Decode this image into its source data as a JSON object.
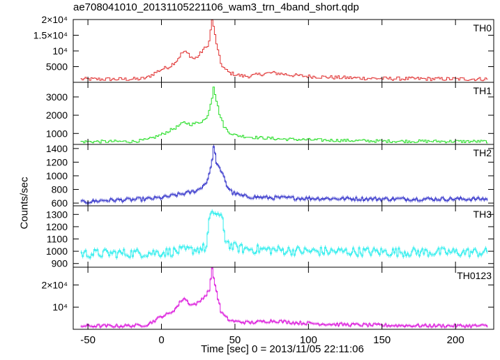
{
  "chart_data": {
    "type": "line",
    "title": "ae708041010_20131105221106_wam3_trn_4band_short.qdp",
    "xlabel": "Time [sec] 0 = 2013/11/05 22:11:06",
    "ylabel": "Counts/sec",
    "xlim": [
      -60,
      226
    ],
    "xticks": [
      -50,
      0,
      50,
      100,
      150,
      200
    ],
    "grid": false,
    "panels": [
      {
        "name": "TH0",
        "color": "#e03030",
        "ylim": [
          0,
          20000
        ],
        "yticks": [
          {
            "v": 5000,
            "label": "5000"
          },
          {
            "v": 10000,
            "label": "10⁴"
          },
          {
            "v": 15000,
            "label": "1.5×10⁴"
          },
          {
            "v": 20000,
            "label": "2×10⁴"
          }
        ],
        "points": [
          [
            -55,
            1000
          ],
          [
            -30,
            1000
          ],
          [
            -15,
            1050
          ],
          [
            -10,
            1500
          ],
          [
            -5,
            3000
          ],
          [
            0,
            4200
          ],
          [
            5,
            5000
          ],
          [
            10,
            7000
          ],
          [
            13,
            9000
          ],
          [
            15,
            9800
          ],
          [
            18,
            9000
          ],
          [
            20,
            8000
          ],
          [
            22,
            7500
          ],
          [
            25,
            8500
          ],
          [
            28,
            10500
          ],
          [
            30,
            11000
          ],
          [
            32,
            13000
          ],
          [
            34,
            20000
          ],
          [
            36,
            15000
          ],
          [
            38,
            10000
          ],
          [
            40,
            6000
          ],
          [
            43,
            4000
          ],
          [
            46,
            3000
          ],
          [
            50,
            2500
          ],
          [
            55,
            2000
          ],
          [
            60,
            2000
          ],
          [
            65,
            2400
          ],
          [
            70,
            2800
          ],
          [
            75,
            3000
          ],
          [
            80,
            2800
          ],
          [
            90,
            2200
          ],
          [
            100,
            1900
          ],
          [
            120,
            1500
          ],
          [
            150,
            1200
          ],
          [
            180,
            1100
          ],
          [
            200,
            1050
          ],
          [
            221,
            1050
          ]
        ]
      },
      {
        "name": "TH1",
        "color": "#22dd22",
        "ylim": [
          400,
          3800
        ],
        "yticks": [
          {
            "v": 1000,
            "label": "1000"
          },
          {
            "v": 2000,
            "label": "2000"
          },
          {
            "v": 3000,
            "label": "3000"
          }
        ],
        "points": [
          [
            -55,
            550
          ],
          [
            -20,
            560
          ],
          [
            -10,
            650
          ],
          [
            -5,
            800
          ],
          [
            0,
            950
          ],
          [
            5,
            1150
          ],
          [
            10,
            1350
          ],
          [
            15,
            1600
          ],
          [
            20,
            1500
          ],
          [
            25,
            1600
          ],
          [
            30,
            1800
          ],
          [
            32,
            2300
          ],
          [
            34,
            3000
          ],
          [
            35,
            3600
          ],
          [
            37,
            2800
          ],
          [
            39,
            2100
          ],
          [
            42,
            1400
          ],
          [
            45,
            1100
          ],
          [
            50,
            900
          ],
          [
            60,
            800
          ],
          [
            70,
            750
          ],
          [
            80,
            700
          ],
          [
            100,
            650
          ],
          [
            150,
            580
          ],
          [
            221,
            560
          ]
        ]
      },
      {
        "name": "TH2",
        "color": "#3a3acc",
        "ylim": [
          560,
          1460
        ],
        "yticks": [
          {
            "v": 600,
            "label": "600"
          },
          {
            "v": 800,
            "label": "800"
          },
          {
            "v": 1000,
            "label": "1000"
          },
          {
            "v": 1200,
            "label": "1200"
          },
          {
            "v": 1400,
            "label": "1400"
          }
        ],
        "points": [
          [
            -55,
            610
          ],
          [
            -40,
            640
          ],
          [
            -20,
            650
          ],
          [
            -10,
            660
          ],
          [
            0,
            680
          ],
          [
            10,
            720
          ],
          [
            20,
            760
          ],
          [
            25,
            800
          ],
          [
            30,
            900
          ],
          [
            33,
            1100
          ],
          [
            35,
            1420
          ],
          [
            37,
            1200
          ],
          [
            40,
            1050
          ],
          [
            42,
            1000
          ],
          [
            44,
            850
          ],
          [
            48,
            750
          ],
          [
            55,
            700
          ],
          [
            70,
            680
          ],
          [
            100,
            670
          ],
          [
            150,
            660
          ],
          [
            221,
            660
          ]
        ]
      },
      {
        "name": "TH3",
        "color": "#33eeee",
        "ylim": [
          870,
          1370
        ],
        "yticks": [
          {
            "v": 900,
            "label": "900"
          },
          {
            "v": 1000,
            "label": "1000"
          },
          {
            "v": 1100,
            "label": "1100"
          },
          {
            "v": 1200,
            "label": "1200"
          },
          {
            "v": 1300,
            "label": "1300"
          }
        ],
        "points": [
          [
            -55,
            980
          ],
          [
            -20,
            985
          ],
          [
            0,
            990
          ],
          [
            10,
            1000
          ],
          [
            20,
            1010
          ],
          [
            30,
            1030
          ],
          [
            32,
            1250
          ],
          [
            35,
            1320
          ],
          [
            38,
            1300
          ],
          [
            41,
            1250
          ],
          [
            43,
            1100
          ],
          [
            47,
            1040
          ],
          [
            55,
            1020
          ],
          [
            100,
            1000
          ],
          [
            150,
            995
          ],
          [
            221,
            990
          ]
        ]
      },
      {
        "name": "TH0123",
        "color": "#dd22dd",
        "ylim": [
          0,
          28000
        ],
        "yticks": [
          {
            "v": 10000,
            "label": "10⁴"
          },
          {
            "v": 20000,
            "label": "2×10⁴"
          }
        ],
        "points": [
          [
            -55,
            1500
          ],
          [
            -30,
            1500
          ],
          [
            -15,
            1700
          ],
          [
            -10,
            2200
          ],
          [
            -5,
            4000
          ],
          [
            0,
            6000
          ],
          [
            5,
            7000
          ],
          [
            10,
            10000
          ],
          [
            13,
            13000
          ],
          [
            15,
            14000
          ],
          [
            18,
            12000
          ],
          [
            20,
            11000
          ],
          [
            25,
            12000
          ],
          [
            28,
            14500
          ],
          [
            30,
            15500
          ],
          [
            32,
            18000
          ],
          [
            34,
            27000
          ],
          [
            36,
            20000
          ],
          [
            38,
            14000
          ],
          [
            40,
            8000
          ],
          [
            43,
            5500
          ],
          [
            46,
            4000
          ],
          [
            50,
            3500
          ],
          [
            60,
            3000
          ],
          [
            70,
            3600
          ],
          [
            75,
            3800
          ],
          [
            80,
            3600
          ],
          [
            90,
            3000
          ],
          [
            100,
            2700
          ],
          [
            120,
            2200
          ],
          [
            150,
            1800
          ],
          [
            180,
            1600
          ],
          [
            221,
            1550
          ]
        ]
      }
    ]
  }
}
